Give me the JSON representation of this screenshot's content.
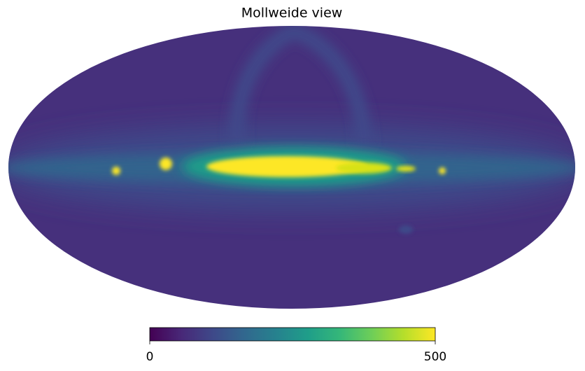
{
  "chart_data": {
    "type": "mollweide",
    "title": "Mollweide view",
    "colorbar": {
      "lim": [
        0,
        500
      ],
      "ticks": [
        0,
        500
      ],
      "colors": [
        "#440154",
        "#482878",
        "#3e4989",
        "#31688e",
        "#26828e",
        "#1f9e89",
        "#35b779",
        "#6ece58",
        "#b5de2b",
        "#fde725"
      ]
    }
  }
}
